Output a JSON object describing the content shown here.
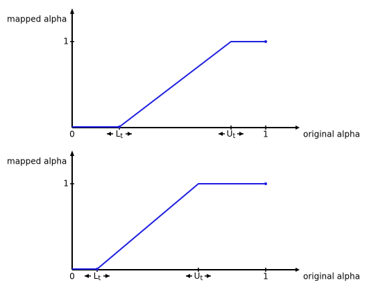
{
  "panels": [
    {
      "y_label": "mapped alpha",
      "x_label": "original alpha",
      "y_tick": "1",
      "origin": "0",
      "x_tick": "1",
      "lower": {
        "main": "L",
        "sub": "t"
      },
      "upper": {
        "main": "U",
        "sub": "t"
      }
    },
    {
      "y_label": "mapped alpha",
      "x_label": "original alpha",
      "y_tick": "1",
      "origin": "0",
      "x_tick": "1",
      "lower": {
        "main": "L",
        "sub": "t"
      },
      "upper": {
        "main": "U",
        "sub": "t"
      }
    }
  ]
}
